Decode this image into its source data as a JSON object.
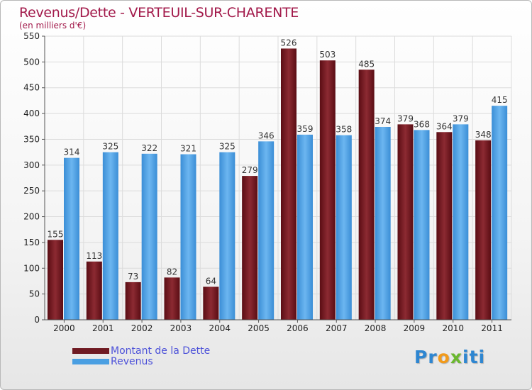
{
  "title": "Revenus/Dette - VERTEUIL-SUR-CHARENTE",
  "subtitle": "(en milliers d'€)",
  "legend": [
    {
      "label": "Montant de la Dette",
      "color": "#6f1a22"
    },
    {
      "label": "Revenus",
      "color": "#4a9fe2"
    }
  ],
  "logo": {
    "text": "Proxiti",
    "letters": [
      "P",
      "r",
      "o",
      "x",
      "i",
      "t",
      "i"
    ],
    "colors": [
      "#2e86d1",
      "#2e86d1",
      "#f29a1a",
      "#6ab82e",
      "#2e86d1",
      "#2e86d1",
      "#2e86d1"
    ]
  },
  "chart_data": {
    "type": "bar",
    "categories": [
      "2000",
      "2001",
      "2002",
      "2003",
      "2004",
      "2005",
      "2006",
      "2007",
      "2008",
      "2009",
      "2010",
      "2011"
    ],
    "series": [
      {
        "name": "Montant de la Dette",
        "values": [
          155,
          113,
          73,
          82,
          64,
          279,
          526,
          503,
          485,
          379,
          364,
          348
        ],
        "color": "#6f1a22"
      },
      {
        "name": "Revenus",
        "values": [
          314,
          325,
          322,
          321,
          325,
          346,
          359,
          358,
          374,
          368,
          379,
          415
        ],
        "color": "#4a9fe2"
      }
    ],
    "ylim": [
      0,
      550
    ],
    "yticks": [
      0,
      50,
      100,
      150,
      200,
      250,
      300,
      350,
      400,
      450,
      500,
      550
    ],
    "grid": true,
    "legend_position": "bottom-left"
  }
}
